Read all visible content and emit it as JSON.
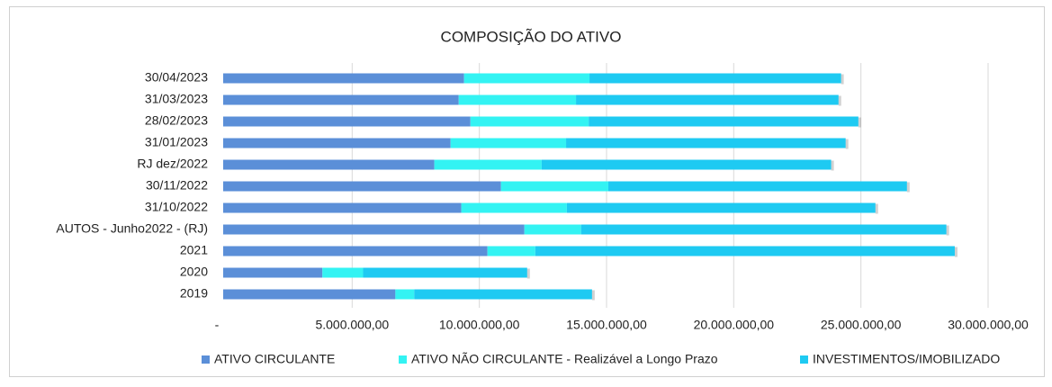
{
  "chart_data": {
    "type": "stacked_barh",
    "title": "COMPOSIÇÃO DO ATIVO",
    "categories": [
      "30/04/2023",
      "31/03/2023",
      "28/02/2023",
      "31/01/2023",
      "RJ dez/2022",
      "30/11/2022",
      "31/10/2022",
      "AUTOS - Junho2022 - (RJ)",
      "2021",
      "2020",
      "2019"
    ],
    "series": [
      {
        "name": "ATIVO CIRCULANTE",
        "color": "#5b8fd8",
        "values": [
          9470000,
          9260000,
          9720000,
          8940000,
          8300000,
          10920000,
          9360000,
          11840000,
          10390000,
          3900000,
          6770000
        ]
      },
      {
        "name": "ATIVO NÃO CIRCULANTE - Realizável a Longo Prazo",
        "color": "#33f3f3",
        "values": [
          4930000,
          4610000,
          4650000,
          4540000,
          4220000,
          4220000,
          4150000,
          2230000,
          1880000,
          1600000,
          740000
        ]
      },
      {
        "name": "INVESTIMENTOS/IMOBILIZADO",
        "color": "#1ecaf2",
        "values": [
          9890000,
          10320000,
          10600000,
          10990000,
          11380000,
          11740000,
          12130000,
          14360000,
          16490000,
          6450000,
          6990000
        ]
      }
    ],
    "xlim": [
      0,
      30000000
    ],
    "xticks": [
      {
        "value": 0,
        "label": "-"
      },
      {
        "value": 5000000,
        "label": "5.000.000,00"
      },
      {
        "value": 10000000,
        "label": "10.000.000,00"
      },
      {
        "value": 15000000,
        "label": "15.000.000,00"
      },
      {
        "value": 20000000,
        "label": "20.000.000,00"
      },
      {
        "value": 25000000,
        "label": "25.000.000,00"
      },
      {
        "value": 30000000,
        "label": "30.000.000,00"
      }
    ],
    "grid": true,
    "legend": "bottom"
  }
}
